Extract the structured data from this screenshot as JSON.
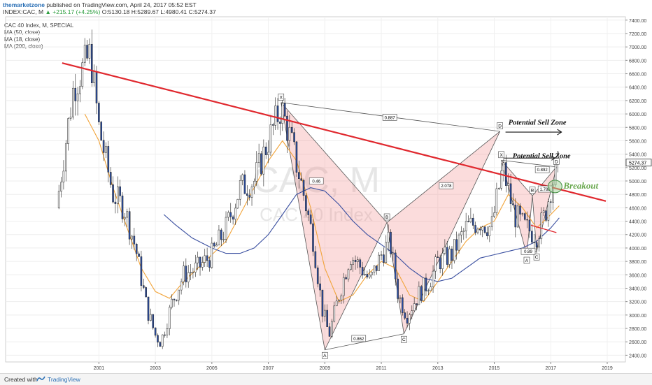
{
  "header": {
    "author": "themarketzone",
    "published": " published on TradingView.com, April 24, 2017 05:52 EST",
    "symbol": "INDEX:CAC, M",
    "change": "+215.17 (+4.25%)",
    "ohlc": "O:5130.18 H:5289.67 L:4980.41 C:5274.37"
  },
  "indicators": [
    "CAC 40 Index, M, SPECIAL",
    "MA (50, close)",
    "MA (18, close)",
    "MA (200, close)"
  ],
  "watermark": {
    "symbol": "CAC, M",
    "name": "CAC 40 Index"
  },
  "footer": {
    "created": "Created with",
    "brand": "TradingView"
  },
  "chart_data": {
    "type": "candlestick",
    "timeframe": "monthly",
    "x_axis": {
      "ticks": [
        "2001",
        "2003",
        "2005",
        "2007",
        "2009",
        "2011",
        "2013",
        "2015",
        "2017",
        "2019"
      ]
    },
    "y_axis": {
      "range": [
        2400,
        7400
      ],
      "ticks": [
        "7400.00",
        "7200.00",
        "7000.00",
        "6800.00",
        "6600.00",
        "6400.00",
        "6200.00",
        "6000.00",
        "5800.00",
        "5600.00",
        "5400.00",
        "5200.00",
        "5000.00",
        "4800.00",
        "4600.00",
        "4400.00",
        "4200.00",
        "4000.00",
        "3800.00",
        "3600.00",
        "3400.00",
        "3200.00",
        "3000.00",
        "2800.00",
        "2600.00",
        "2400.00"
      ],
      "last_price_label": "5274.37"
    },
    "price_path": [
      [
        1999.5,
        4600
      ],
      [
        2000.1,
        6400
      ],
      [
        2000.7,
        6900
      ],
      [
        2001.0,
        5800
      ],
      [
        2001.5,
        4800
      ],
      [
        2001.9,
        4600
      ],
      [
        2002.3,
        4000
      ],
      [
        2002.7,
        3100
      ],
      [
        2003.0,
        2700
      ],
      [
        2003.2,
        2600
      ],
      [
        2003.6,
        3200
      ],
      [
        2004.0,
        3600
      ],
      [
        2004.5,
        3700
      ],
      [
        2005.0,
        3900
      ],
      [
        2005.5,
        4300
      ],
      [
        2006.0,
        4900
      ],
      [
        2006.5,
        5000
      ],
      [
        2007.0,
        5600
      ],
      [
        2007.45,
        6100
      ],
      [
        2007.8,
        5600
      ],
      [
        2008.2,
        4900
      ],
      [
        2008.6,
        4100
      ],
      [
        2008.9,
        3100
      ],
      [
        2009.15,
        2700
      ],
      [
        2009.5,
        3300
      ],
      [
        2009.9,
        3900
      ],
      [
        2010.3,
        3700
      ],
      [
        2010.6,
        3500
      ],
      [
        2011.0,
        3900
      ],
      [
        2011.3,
        4100
      ],
      [
        2011.6,
        3300
      ],
      [
        2011.9,
        3000
      ],
      [
        2012.3,
        3300
      ],
      [
        2012.7,
        3500
      ],
      [
        2013.0,
        3800
      ],
      [
        2013.5,
        3900
      ],
      [
        2014.0,
        4300
      ],
      [
        2014.5,
        4400
      ],
      [
        2014.9,
        4300
      ],
      [
        2015.3,
        5200
      ],
      [
        2015.7,
        4500
      ],
      [
        2016.1,
        4300
      ],
      [
        2016.5,
        4200
      ],
      [
        2016.8,
        4500
      ],
      [
        2017.0,
        4900
      ],
      [
        2017.3,
        5274
      ]
    ],
    "moving_averages": [
      {
        "name": "MA (18, close)",
        "color": "#f2a43a",
        "points": [
          [
            2000.5,
            6000
          ],
          [
            2001.0,
            5600
          ],
          [
            2001.5,
            4900
          ],
          [
            2002.0,
            4300
          ],
          [
            2002.5,
            3700
          ],
          [
            2003.0,
            3350
          ],
          [
            2003.5,
            3250
          ],
          [
            2004.0,
            3500
          ],
          [
            2004.5,
            3700
          ],
          [
            2005.0,
            3900
          ],
          [
            2005.5,
            4100
          ],
          [
            2006.0,
            4500
          ],
          [
            2006.5,
            4900
          ],
          [
            2007.0,
            5300
          ],
          [
            2007.5,
            5600
          ],
          [
            2008.0,
            5300
          ],
          [
            2008.5,
            4600
          ],
          [
            2009.0,
            3700
          ],
          [
            2009.5,
            3200
          ],
          [
            2010.0,
            3300
          ],
          [
            2010.5,
            3600
          ],
          [
            2011.0,
            3800
          ],
          [
            2011.5,
            3700
          ],
          [
            2012.0,
            3300
          ],
          [
            2012.5,
            3200
          ],
          [
            2013.0,
            3500
          ],
          [
            2013.5,
            3800
          ],
          [
            2014.0,
            4100
          ],
          [
            2014.5,
            4300
          ],
          [
            2015.0,
            4400
          ],
          [
            2015.5,
            4800
          ],
          [
            2016.0,
            4600
          ],
          [
            2016.5,
            4300
          ],
          [
            2017.0,
            4500
          ],
          [
            2017.3,
            4630
          ]
        ]
      },
      {
        "name": "MA (50, close)",
        "color": "#3a4fa0",
        "points": [
          [
            2003.3,
            4500
          ],
          [
            2003.7,
            4350
          ],
          [
            2004.3,
            4150
          ],
          [
            2005.0,
            4000
          ],
          [
            2005.5,
            3920
          ],
          [
            2006.0,
            3920
          ],
          [
            2006.5,
            4000
          ],
          [
            2007.0,
            4200
          ],
          [
            2007.5,
            4500
          ],
          [
            2008.0,
            4800
          ],
          [
            2008.5,
            4900
          ],
          [
            2009.0,
            4850
          ],
          [
            2009.5,
            4650
          ],
          [
            2010.0,
            4400
          ],
          [
            2010.5,
            4200
          ],
          [
            2011.0,
            4050
          ],
          [
            2011.5,
            3900
          ],
          [
            2012.0,
            3700
          ],
          [
            2012.5,
            3550
          ],
          [
            2013.0,
            3500
          ],
          [
            2013.5,
            3550
          ],
          [
            2014.0,
            3700
          ],
          [
            2014.5,
            3850
          ],
          [
            2015.0,
            3900
          ],
          [
            2015.5,
            3950
          ],
          [
            2016.0,
            4000
          ],
          [
            2016.5,
            4100
          ],
          [
            2017.0,
            4300
          ],
          [
            2017.3,
            4450
          ]
        ]
      }
    ],
    "trendlines": [
      {
        "name": "main-resistance-line",
        "color": "#e0282e",
        "points": [
          [
            1999.7,
            6760
          ],
          [
            2018.95,
            4700
          ]
        ]
      },
      {
        "name": "breakout-trend-line",
        "color": "#e0282e",
        "points": [
          [
            2016.3,
            4340
          ],
          [
            2017.2,
            4230
          ]
        ]
      }
    ],
    "harmonic_patterns": [
      {
        "name": "large-pattern",
        "points": [
          {
            "label": "X",
            "x": 2007.45,
            "y": 6170
          },
          {
            "label": "A",
            "x": 2009.0,
            "y": 2480
          },
          {
            "label": "B",
            "x": 2011.2,
            "y": 4380
          },
          {
            "label": "C",
            "x": 2011.8,
            "y": 2720
          },
          {
            "label": "D",
            "x": 2015.2,
            "y": 5740
          }
        ],
        "ratios": [
          {
            "label": "0.887",
            "x": 2011.3,
            "y": 5950
          },
          {
            "label": "0.46",
            "x": 2008.7,
            "y": 5000
          },
          {
            "label": "0.862",
            "x": 2010.2,
            "y": 2650
          },
          {
            "label": "2.078",
            "x": 2013.3,
            "y": 4930
          }
        ],
        "annotation": {
          "text": "Potential Sell Zone",
          "x": 2015.5,
          "y": 5840
        }
      },
      {
        "name": "small-pattern",
        "points": [
          {
            "label": "X",
            "x": 2015.25,
            "y": 5310
          },
          {
            "label": "A",
            "x": 2016.15,
            "y": 3900
          },
          {
            "label": "B",
            "x": 2016.35,
            "y": 4780
          },
          {
            "label": "C",
            "x": 2016.5,
            "y": 3950
          },
          {
            "label": "D",
            "x": 2017.2,
            "y": 5210
          }
        ],
        "ratios": [
          {
            "label": "0.892",
            "x": 2016.7,
            "y": 5170
          },
          {
            "label": "1.788",
            "x": 2016.8,
            "y": 4880
          },
          {
            "label": "0.89",
            "x": 2016.2,
            "y": 3950
          }
        ],
        "annotation": {
          "text": "Potential Sell Zone",
          "x": 2015.65,
          "y": 5340
        }
      }
    ],
    "breakout": {
      "text": "Breakout",
      "x": 2017.25,
      "y": 4960
    }
  }
}
